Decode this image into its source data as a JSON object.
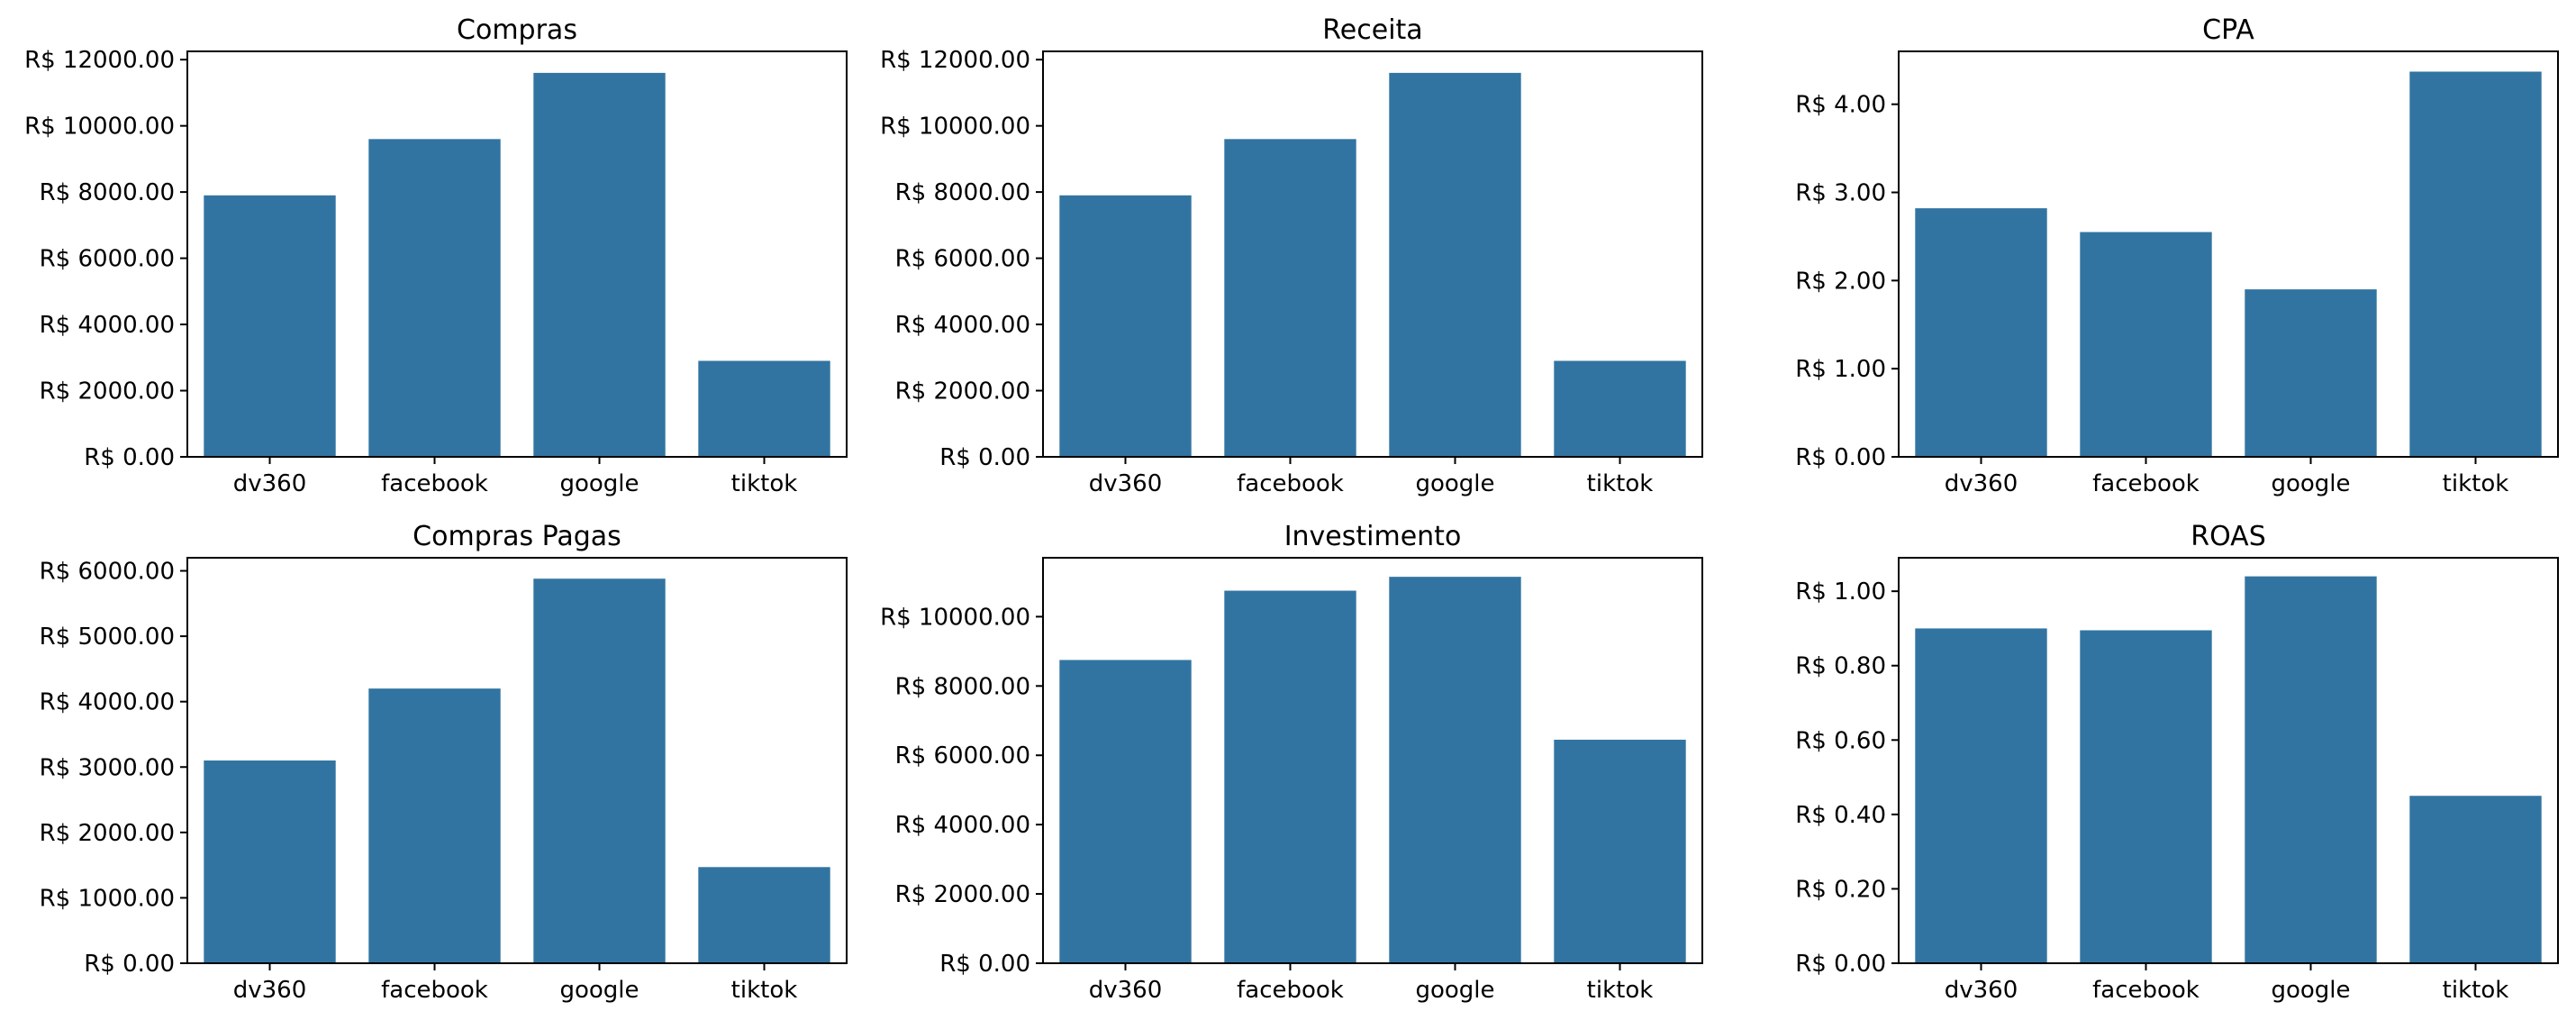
{
  "colors": {
    "bar": "#3274a1",
    "axis": "#000000",
    "background": "#ffffff"
  },
  "chart_data": [
    {
      "type": "bar",
      "title": "Compras",
      "categories": [
        "dv360",
        "facebook",
        "google",
        "tiktok"
      ],
      "values": [
        7900,
        9600,
        11600,
        2900
      ],
      "ylim": [
        0,
        12250
      ],
      "yticks": [
        0,
        2000,
        4000,
        6000,
        8000,
        10000,
        12000
      ],
      "ytick_labels": [
        "R$ 0.00",
        "R$ 2000.00",
        "R$ 4000.00",
        "R$ 6000.00",
        "R$ 8000.00",
        "R$ 10000.00",
        "R$ 12000.00"
      ],
      "xlabel": "",
      "ylabel": "",
      "grid": false
    },
    {
      "type": "bar",
      "title": "Receita",
      "categories": [
        "dv360",
        "facebook",
        "google",
        "tiktok"
      ],
      "values": [
        7900,
        9600,
        11600,
        2900
      ],
      "ylim": [
        0,
        12250
      ],
      "yticks": [
        0,
        2000,
        4000,
        6000,
        8000,
        10000,
        12000
      ],
      "ytick_labels": [
        "R$ 0.00",
        "R$ 2000.00",
        "R$ 4000.00",
        "R$ 6000.00",
        "R$ 8000.00",
        "R$ 10000.00",
        "R$ 12000.00"
      ],
      "xlabel": "",
      "ylabel": "",
      "grid": false
    },
    {
      "type": "bar",
      "title": "CPA",
      "categories": [
        "dv360",
        "facebook",
        "google",
        "tiktok"
      ],
      "values": [
        2.82,
        2.55,
        1.9,
        4.37
      ],
      "ylim": [
        0,
        4.6
      ],
      "yticks": [
        0,
        1,
        2,
        3,
        4
      ],
      "ytick_labels": [
        "R$ 0.00",
        "R$ 1.00",
        "R$ 2.00",
        "R$ 3.00",
        "R$ 4.00"
      ],
      "xlabel": "",
      "ylabel": "",
      "grid": false
    },
    {
      "type": "bar",
      "title": "Compras Pagas",
      "categories": [
        "dv360",
        "facebook",
        "google",
        "tiktok"
      ],
      "values": [
        3100,
        4200,
        5880,
        1470
      ],
      "ylim": [
        0,
        6200
      ],
      "yticks": [
        0,
        1000,
        2000,
        3000,
        4000,
        5000,
        6000
      ],
      "ytick_labels": [
        "R$ 0.00",
        "R$ 1000.00",
        "R$ 2000.00",
        "R$ 3000.00",
        "R$ 4000.00",
        "R$ 5000.00",
        "R$ 6000.00"
      ],
      "xlabel": "",
      "ylabel": "",
      "grid": false
    },
    {
      "type": "bar",
      "title": "Investimento",
      "categories": [
        "dv360",
        "facebook",
        "google",
        "tiktok"
      ],
      "values": [
        8750,
        10750,
        11150,
        6450
      ],
      "ylim": [
        0,
        11700
      ],
      "yticks": [
        0,
        2000,
        4000,
        6000,
        8000,
        10000
      ],
      "ytick_labels": [
        "R$ 0.00",
        "R$ 2000.00",
        "R$ 4000.00",
        "R$ 6000.00",
        "R$ 8000.00",
        "R$ 10000.00"
      ],
      "xlabel": "",
      "ylabel": "",
      "grid": false
    },
    {
      "type": "bar",
      "title": "ROAS",
      "categories": [
        "dv360",
        "facebook",
        "google",
        "tiktok"
      ],
      "values": [
        0.9,
        0.895,
        1.04,
        0.45
      ],
      "ylim": [
        0,
        1.09
      ],
      "yticks": [
        0,
        0.2,
        0.4,
        0.6,
        0.8,
        1.0
      ],
      "ytick_labels": [
        "R$ 0.00",
        "R$ 0.20",
        "R$ 0.40",
        "R$ 0.60",
        "R$ 0.80",
        "R$ 1.00"
      ],
      "xlabel": "",
      "ylabel": "",
      "grid": false
    }
  ]
}
